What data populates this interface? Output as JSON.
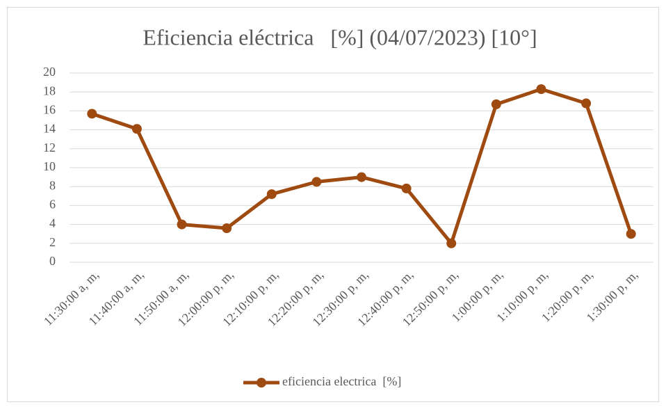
{
  "chart_data": {
    "type": "line",
    "title": "Eficiencia eléctrica   [%] (04/07/2023) [10°]",
    "categories": [
      "11:30:00 a, m,",
      "11:40:00 a, m,",
      "11:50:00 a, m,",
      "12:00:00 p, m,",
      "12:10:00 p, m,",
      "12:20:00 p, m,",
      "12:30:00 p, m,",
      "12:40:00 p, m,",
      "12:50:00 p, m,",
      "1:00:00 p, m,",
      "1:10:00 p, m,",
      "1:20:00 p, m,",
      "1:30:00 p, m,"
    ],
    "series": [
      {
        "name": "eficiencia electrica  [%]",
        "color": "#9e4a10",
        "values": [
          15.7,
          14.1,
          4.0,
          3.6,
          7.2,
          8.5,
          9.0,
          7.8,
          2.0,
          16.7,
          18.3,
          16.8,
          3.0
        ]
      }
    ],
    "ylim": [
      0,
      20
    ],
    "yticks": [
      0,
      2,
      4,
      6,
      8,
      10,
      12,
      14,
      16,
      18,
      20
    ],
    "grid": true,
    "legend": "bottom"
  }
}
